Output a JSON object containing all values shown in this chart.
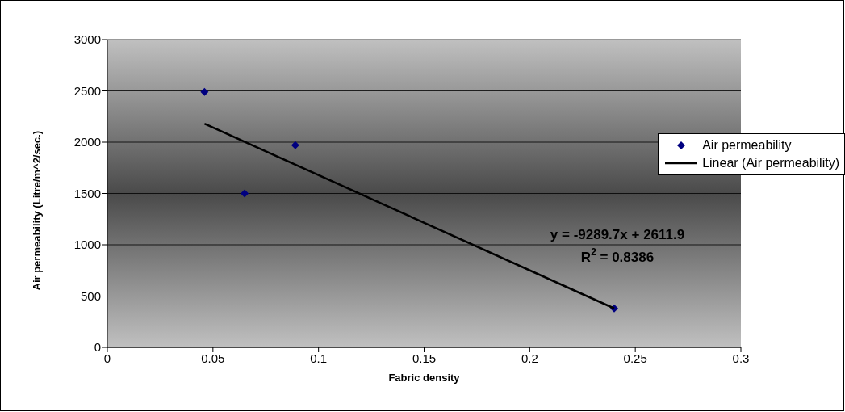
{
  "chart_data": {
    "type": "scatter",
    "xlabel": "Fabric density",
    "ylabel": "Air permeability (Litre/m^2/sec.)",
    "xlim": [
      0,
      0.3
    ],
    "xticks": [
      0,
      0.05,
      0.1,
      0.15,
      0.2,
      0.25,
      0.3
    ],
    "ylim": [
      0,
      3000
    ],
    "yticks": [
      0,
      500,
      1000,
      1500,
      2000,
      2500,
      3000
    ],
    "grid": "y",
    "legend": "right",
    "series": [
      {
        "name": "Air permeability",
        "color": "#000080",
        "marker": "diamond",
        "x": [
          0.046,
          0.065,
          0.089,
          0.24
        ],
        "values": [
          2490,
          1500,
          1970,
          380
        ]
      },
      {
        "name": "Linear (Air permeability)",
        "type": "line",
        "color": "#000000",
        "marker": "none",
        "x": [
          0.046,
          0.24
        ],
        "values": [
          2180,
          380
        ]
      }
    ],
    "annotations": [
      "y = -9289.7x + 2611.9",
      "R$^{2}$ = 0.8386"
    ]
  }
}
